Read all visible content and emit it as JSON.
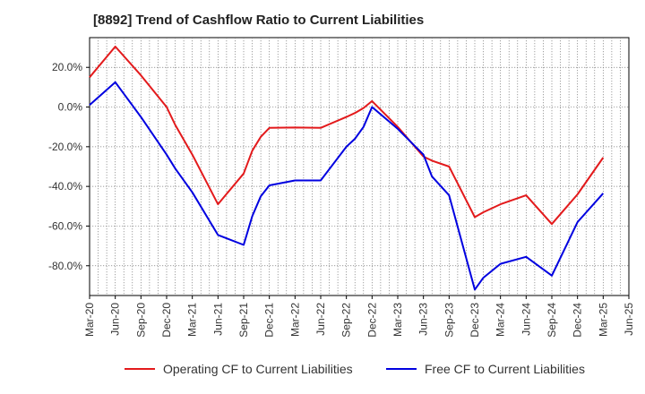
{
  "chart_data": {
    "type": "line",
    "title": "[8892]  Trend of Cashflow Ratio to Current Liabilities",
    "xlabel": "",
    "ylabel": "",
    "x_tick_labels": [
      "Mar-20",
      "Jun-20",
      "Sep-20",
      "Dec-20",
      "Mar-21",
      "Jun-21",
      "Sep-21",
      "Dec-21",
      "Mar-22",
      "Jun-22",
      "Sep-22",
      "Dec-22",
      "Mar-23",
      "Jun-23",
      "Sep-23",
      "Dec-23",
      "Mar-24",
      "Jun-24",
      "Sep-24",
      "Dec-24",
      "Mar-25",
      "Jun-25"
    ],
    "y_ticks": [
      20,
      0,
      -20,
      -40,
      -60,
      -80
    ],
    "y_tick_labels": [
      "20.0%",
      "0.0%",
      "-20.0%",
      "-40.0%",
      "-60.0%",
      "-80.0%"
    ],
    "ylim": [
      -95,
      35
    ],
    "xlim": [
      "2020-03",
      "2025-06"
    ],
    "grid": true,
    "legend_position": "bottom",
    "series": [
      {
        "name": "Operating CF to Current Liabilities",
        "color": "#e31a1c",
        "points": [
          [
            "2020-03",
            15.0
          ],
          [
            "2020-06",
            30.5
          ],
          [
            "2020-09",
            16.0
          ],
          [
            "2020-12",
            0.0
          ],
          [
            "2021-01",
            -9.0
          ],
          [
            "2021-03",
            -24.0
          ],
          [
            "2021-06",
            -49.0
          ],
          [
            "2021-09",
            -33.5
          ],
          [
            "2021-10",
            -22.0
          ],
          [
            "2021-11",
            -15.0
          ],
          [
            "2021-12",
            -10.5
          ],
          [
            "2022-03",
            -10.3
          ],
          [
            "2022-06",
            -10.5
          ],
          [
            "2022-09",
            -5.0
          ],
          [
            "2022-10",
            -3.0
          ],
          [
            "2022-11",
            -0.5
          ],
          [
            "2022-12",
            3.0
          ],
          [
            "2023-03",
            -10.0
          ],
          [
            "2023-06",
            -25.0
          ],
          [
            "2023-07",
            -27.0
          ],
          [
            "2023-09",
            -30.0
          ],
          [
            "2023-12",
            -55.5
          ],
          [
            "2024-01",
            -53.0
          ],
          [
            "2024-03",
            -49.0
          ],
          [
            "2024-06",
            -44.5
          ],
          [
            "2024-09",
            -59.0
          ],
          [
            "2024-12",
            -44.0
          ],
          [
            "2025-03",
            -25.5
          ]
        ]
      },
      {
        "name": "Free CF to Current Liabilities",
        "color": "#0000e0",
        "points": [
          [
            "2020-03",
            1.0
          ],
          [
            "2020-06",
            12.5
          ],
          [
            "2020-09",
            -5.0
          ],
          [
            "2020-12",
            -24.0
          ],
          [
            "2021-01",
            -31.0
          ],
          [
            "2021-03",
            -43.0
          ],
          [
            "2021-06",
            -64.5
          ],
          [
            "2021-09",
            -69.5
          ],
          [
            "2021-10",
            -55.0
          ],
          [
            "2021-11",
            -45.0
          ],
          [
            "2021-12",
            -39.5
          ],
          [
            "2022-03",
            -37.0
          ],
          [
            "2022-06",
            -37.0
          ],
          [
            "2022-09",
            -20.0
          ],
          [
            "2022-10",
            -16.0
          ],
          [
            "2022-11",
            -10.0
          ],
          [
            "2022-12",
            0.0
          ],
          [
            "2023-03",
            -11.0
          ],
          [
            "2023-06",
            -24.0
          ],
          [
            "2023-07",
            -35.0
          ],
          [
            "2023-09",
            -44.5
          ],
          [
            "2023-12",
            -92.0
          ],
          [
            "2024-01",
            -86.0
          ],
          [
            "2024-03",
            -79.0
          ],
          [
            "2024-06",
            -75.5
          ],
          [
            "2024-09",
            -85.0
          ],
          [
            "2024-12",
            -58.0
          ],
          [
            "2025-03",
            -43.5
          ]
        ]
      }
    ]
  }
}
